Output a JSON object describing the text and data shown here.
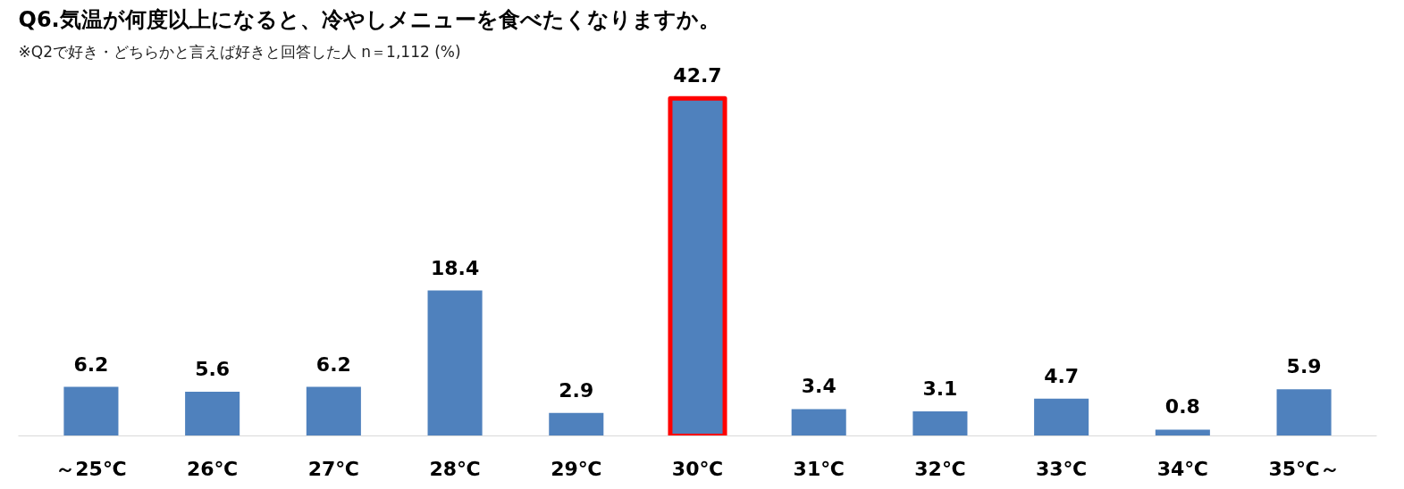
{
  "chart_data": {
    "type": "bar",
    "title": "Q6.気温が何度以上になると、冷やしメニューを食べたくなりますか。",
    "subtitle": "※Q2で好き・どちらかと言えば好きと回答した人 n＝1,112 (%)",
    "categories": [
      "～25℃",
      "26℃",
      "27℃",
      "28℃",
      "29℃",
      "30℃",
      "31℃",
      "32℃",
      "33℃",
      "34℃",
      "35℃～"
    ],
    "values": [
      6.2,
      5.6,
      6.2,
      18.4,
      2.9,
      42.7,
      3.4,
      3.1,
      4.7,
      0.8,
      5.9
    ],
    "color": "#4f81bd",
    "data_labels": true
  }
}
